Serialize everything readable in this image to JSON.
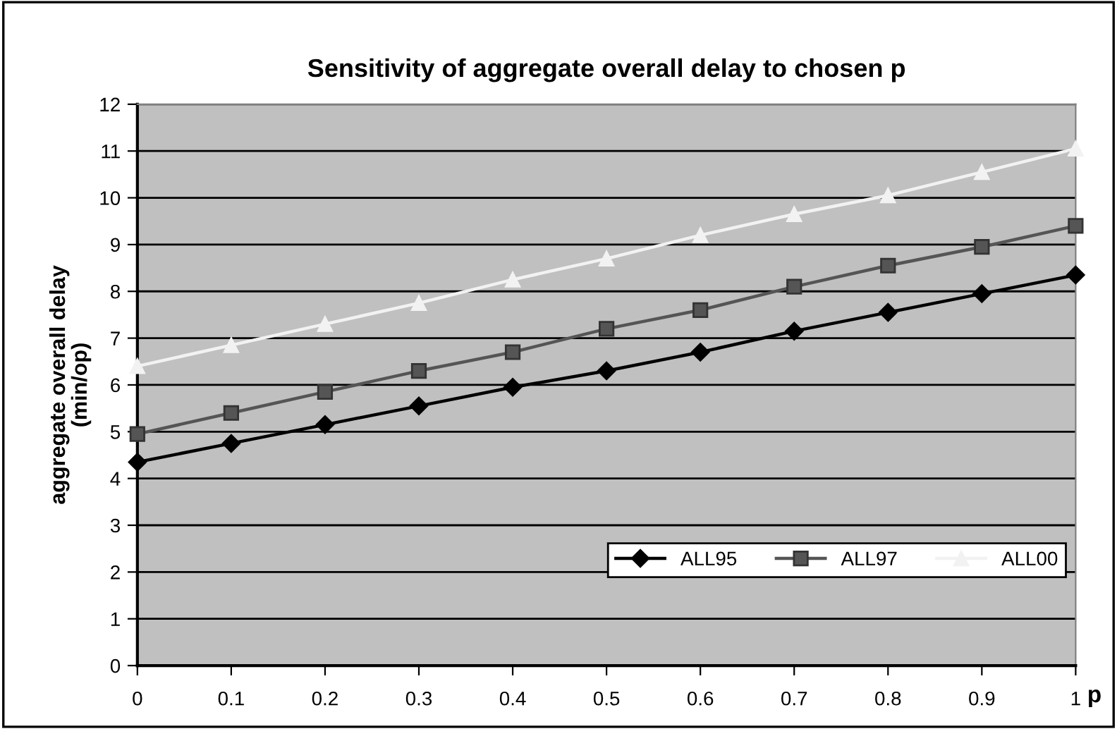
{
  "chart_data": {
    "type": "line",
    "title": "Sensitivity of aggregate overall delay to chosen p",
    "xlabel": "p",
    "ylabel": "aggregate overall delay\n(min/op)",
    "x": [
      0,
      0.1,
      0.2,
      0.3,
      0.4,
      0.5,
      0.6,
      0.7,
      0.8,
      0.9,
      1
    ],
    "series": [
      {
        "name": "ALL95",
        "color": "#000000",
        "marker": "diamond",
        "values": [
          4.35,
          4.75,
          5.15,
          5.55,
          5.95,
          6.3,
          6.7,
          7.15,
          7.55,
          7.95,
          8.35
        ]
      },
      {
        "name": "ALL97",
        "color": "#555555",
        "marker": "square",
        "values": [
          4.95,
          5.4,
          5.85,
          6.3,
          6.7,
          7.2,
          7.6,
          8.1,
          8.55,
          8.95,
          9.4
        ]
      },
      {
        "name": "ALL00",
        "color": "#f2f2f2",
        "marker": "triangle",
        "values": [
          6.4,
          6.85,
          7.3,
          7.75,
          8.25,
          8.7,
          9.2,
          9.65,
          10.05,
          10.55,
          11.05
        ]
      }
    ],
    "xlim": [
      0,
      1
    ],
    "xticks": [
      0,
      0.1,
      0.2,
      0.3,
      0.4,
      0.5,
      0.6,
      0.7,
      0.8,
      0.9,
      1
    ],
    "ylim": [
      0,
      12
    ],
    "yticks": [
      0,
      1,
      2,
      3,
      4,
      5,
      6,
      7,
      8,
      9,
      10,
      11,
      12
    ],
    "grid": "y",
    "legend": "bottom right"
  }
}
